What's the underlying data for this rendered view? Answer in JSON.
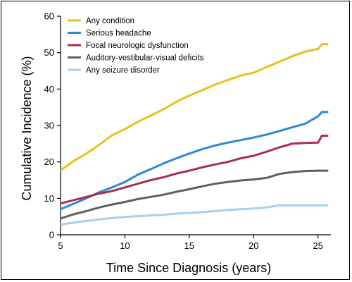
{
  "chart_data": {
    "type": "line",
    "title": "",
    "xlabel": "Time Since Diagnosis (years)",
    "ylabel": "Cumulative Incidence (%)",
    "xlim": [
      5,
      26
    ],
    "ylim": [
      0,
      60
    ],
    "xticks": [
      5,
      10,
      15,
      20,
      25
    ],
    "yticks": [
      0,
      10,
      20,
      30,
      40,
      50,
      60
    ],
    "grid": false,
    "legend_position": "top-left",
    "series": [
      {
        "name": "Any condition",
        "color": "#e6c21e",
        "points": [
          [
            5.0,
            17.7
          ],
          [
            6,
            20.2
          ],
          [
            7,
            22.3
          ],
          [
            8,
            24.7
          ],
          [
            9,
            27.3
          ],
          [
            10,
            29.0
          ],
          [
            11,
            31.0
          ],
          [
            12,
            32.7
          ],
          [
            13,
            34.5
          ],
          [
            14,
            36.5
          ],
          [
            15,
            38.2
          ],
          [
            16,
            39.7
          ],
          [
            17,
            41.2
          ],
          [
            18,
            42.5
          ],
          [
            19,
            43.7
          ],
          [
            20,
            44.5
          ],
          [
            21,
            46.0
          ],
          [
            22,
            47.5
          ],
          [
            23,
            49.0
          ],
          [
            24,
            50.3
          ],
          [
            25,
            51.0
          ],
          [
            25.3,
            52.3
          ],
          [
            25.8,
            52.3
          ]
        ]
      },
      {
        "name": "Serious headache",
        "color": "#2e88d6",
        "points": [
          [
            5.0,
            7.0
          ],
          [
            6,
            8.5
          ],
          [
            7,
            10.0
          ],
          [
            8,
            11.7
          ],
          [
            9,
            13.0
          ],
          [
            10,
            14.5
          ],
          [
            11,
            16.5
          ],
          [
            12,
            18.0
          ],
          [
            13,
            19.6
          ],
          [
            14,
            21.0
          ],
          [
            15,
            22.3
          ],
          [
            16,
            23.5
          ],
          [
            17,
            24.5
          ],
          [
            18,
            25.3
          ],
          [
            19,
            26.0
          ],
          [
            20,
            26.7
          ],
          [
            21,
            27.5
          ],
          [
            22,
            28.5
          ],
          [
            23,
            29.5
          ],
          [
            24,
            30.5
          ],
          [
            25,
            32.5
          ],
          [
            25.3,
            33.7
          ],
          [
            25.8,
            33.7
          ]
        ]
      },
      {
        "name": "Focal neurologic dysfunction",
        "color": "#aa2e4e",
        "points": [
          [
            5.0,
            8.6
          ],
          [
            6,
            9.5
          ],
          [
            7,
            10.4
          ],
          [
            8,
            11.3
          ],
          [
            9,
            12.0
          ],
          [
            10,
            13.0
          ],
          [
            11,
            14.0
          ],
          [
            12,
            15.0
          ],
          [
            13,
            15.8
          ],
          [
            14,
            16.8
          ],
          [
            15,
            17.6
          ],
          [
            16,
            18.5
          ],
          [
            17,
            19.3
          ],
          [
            18,
            20.0
          ],
          [
            19,
            21.0
          ],
          [
            20,
            21.7
          ],
          [
            21,
            22.8
          ],
          [
            22,
            24.0
          ],
          [
            23,
            25.0
          ],
          [
            24,
            25.2
          ],
          [
            25,
            25.3
          ],
          [
            25.3,
            27.2
          ],
          [
            25.8,
            27.2
          ]
        ]
      },
      {
        "name": "Auditory-vestibular-visual deficits",
        "color": "#5f5f5f",
        "points": [
          [
            5.0,
            4.5
          ],
          [
            6,
            5.6
          ],
          [
            7,
            6.5
          ],
          [
            8,
            7.5
          ],
          [
            9,
            8.3
          ],
          [
            10,
            9.0
          ],
          [
            11,
            9.8
          ],
          [
            12,
            10.4
          ],
          [
            13,
            11.0
          ],
          [
            14,
            11.8
          ],
          [
            15,
            12.5
          ],
          [
            16,
            13.3
          ],
          [
            17,
            14.0
          ],
          [
            18,
            14.5
          ],
          [
            19,
            14.9
          ],
          [
            20,
            15.2
          ],
          [
            21,
            15.6
          ],
          [
            22,
            16.7
          ],
          [
            23,
            17.2
          ],
          [
            24,
            17.5
          ],
          [
            25,
            17.6
          ],
          [
            25.8,
            17.6
          ]
        ]
      },
      {
        "name": "Any seizure disorder",
        "color": "#a6cff0",
        "points": [
          [
            5.0,
            2.8
          ],
          [
            6,
            3.3
          ],
          [
            7,
            3.8
          ],
          [
            8,
            4.2
          ],
          [
            9,
            4.6
          ],
          [
            10,
            4.9
          ],
          [
            11,
            5.1
          ],
          [
            12,
            5.3
          ],
          [
            13,
            5.5
          ],
          [
            14,
            5.8
          ],
          [
            15,
            6.0
          ],
          [
            16,
            6.2
          ],
          [
            17,
            6.5
          ],
          [
            18,
            6.8
          ],
          [
            19,
            7.0
          ],
          [
            20,
            7.2
          ],
          [
            21,
            7.5
          ],
          [
            22,
            8.1
          ],
          [
            23,
            8.1
          ],
          [
            24,
            8.1
          ],
          [
            25,
            8.1
          ],
          [
            25.8,
            8.1
          ]
        ]
      }
    ]
  }
}
